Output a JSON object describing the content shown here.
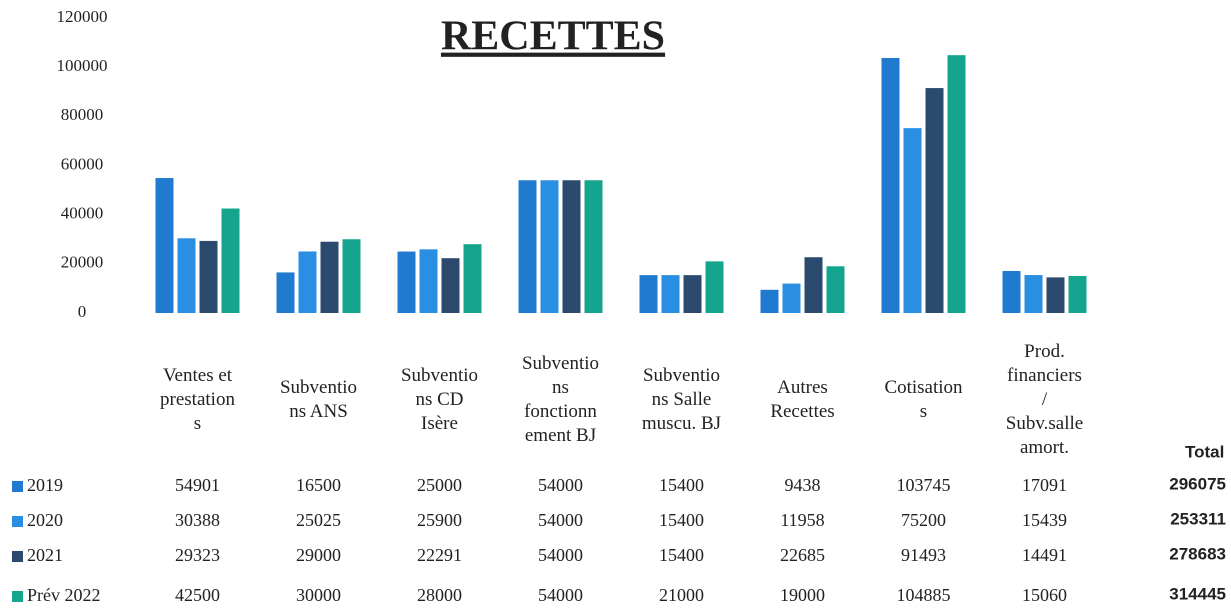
{
  "chart_data": {
    "type": "bar",
    "title": "RECETTES",
    "categories": [
      "Ventes et\nprestation\ns",
      "Subventio\nns ANS",
      "Subventio\nns CD\nIsère",
      "Subventio\nns\nfonctionn\nement BJ",
      "Subventio\nns Salle\nmuscu. BJ",
      "Autres\nRecettes",
      "Cotisation\ns",
      "Prod.\nfinanciers\n/\nSubv.salle\namort."
    ],
    "series": [
      {
        "name": "2019",
        "color": "#1f7ad0",
        "values": [
          54901,
          16500,
          25000,
          54000,
          15400,
          9438,
          103745,
          17091
        ],
        "total": 296075
      },
      {
        "name": "2020",
        "color": "#2a8fe2",
        "values": [
          30388,
          25025,
          25900,
          54000,
          15400,
          11958,
          75200,
          15439
        ],
        "total": 253311
      },
      {
        "name": "2021",
        "color": "#2b4a6e",
        "values": [
          29323,
          29000,
          22291,
          54000,
          15400,
          22685,
          91493,
          14491
        ],
        "total": 278683
      },
      {
        "name": "Prév 2022",
        "color": "#15a58f",
        "values": [
          42500,
          30000,
          28000,
          54000,
          21000,
          19000,
          104885,
          15060
        ],
        "total": 314445
      }
    ],
    "total_label": "Total",
    "ylim": [
      0,
      120000
    ],
    "yticks": [
      0,
      20000,
      40000,
      60000,
      80000,
      100000,
      120000
    ]
  }
}
